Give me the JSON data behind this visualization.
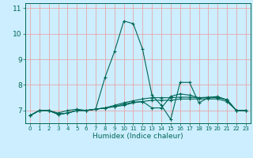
{
  "title": "",
  "xlabel": "Humidex (Indice chaleur)",
  "ylabel": "",
  "bg_color": "#cceeff",
  "grid_color": "#ee9999",
  "line_color": "#006655",
  "xlim": [
    -0.5,
    23.5
  ],
  "ylim": [
    6.5,
    11.2
  ],
  "yticks": [
    7,
    8,
    9,
    10,
    11
  ],
  "xticks": [
    0,
    1,
    2,
    3,
    4,
    5,
    6,
    7,
    8,
    9,
    10,
    11,
    12,
    13,
    14,
    15,
    16,
    17,
    18,
    19,
    20,
    21,
    22,
    23
  ],
  "series1": [
    [
      0,
      6.8
    ],
    [
      1,
      7.0
    ],
    [
      2,
      7.0
    ],
    [
      3,
      6.9
    ],
    [
      4,
      7.0
    ],
    [
      5,
      7.05
    ],
    [
      6,
      7.0
    ],
    [
      7,
      7.05
    ],
    [
      8,
      8.3
    ],
    [
      9,
      9.3
    ],
    [
      10,
      10.5
    ],
    [
      11,
      10.4
    ],
    [
      12,
      9.4
    ],
    [
      13,
      7.6
    ],
    [
      14,
      7.2
    ],
    [
      15,
      6.65
    ],
    [
      16,
      8.1
    ],
    [
      17,
      8.1
    ],
    [
      18,
      7.3
    ],
    [
      19,
      7.5
    ],
    [
      20,
      7.55
    ],
    [
      21,
      7.4
    ],
    [
      22,
      7.0
    ],
    [
      23,
      7.0
    ]
  ],
  "series2": [
    [
      0,
      6.8
    ],
    [
      1,
      7.0
    ],
    [
      2,
      7.0
    ],
    [
      3,
      6.85
    ],
    [
      4,
      6.9
    ],
    [
      5,
      7.0
    ],
    [
      6,
      7.0
    ],
    [
      7,
      7.05
    ],
    [
      8,
      7.1
    ],
    [
      9,
      7.15
    ],
    [
      10,
      7.2
    ],
    [
      11,
      7.3
    ],
    [
      12,
      7.35
    ],
    [
      13,
      7.4
    ],
    [
      14,
      7.4
    ],
    [
      15,
      7.4
    ],
    [
      16,
      7.45
    ],
    [
      17,
      7.45
    ],
    [
      18,
      7.45
    ],
    [
      19,
      7.45
    ],
    [
      20,
      7.45
    ],
    [
      21,
      7.35
    ],
    [
      22,
      7.0
    ],
    [
      23,
      7.0
    ]
  ],
  "series3": [
    [
      0,
      6.8
    ],
    [
      1,
      7.0
    ],
    [
      2,
      7.0
    ],
    [
      3,
      6.85
    ],
    [
      4,
      6.9
    ],
    [
      5,
      7.0
    ],
    [
      6,
      7.0
    ],
    [
      7,
      7.05
    ],
    [
      8,
      7.1
    ],
    [
      9,
      7.2
    ],
    [
      10,
      7.3
    ],
    [
      11,
      7.38
    ],
    [
      12,
      7.45
    ],
    [
      13,
      7.5
    ],
    [
      14,
      7.5
    ],
    [
      15,
      7.5
    ],
    [
      16,
      7.52
    ],
    [
      17,
      7.52
    ],
    [
      18,
      7.5
    ],
    [
      19,
      7.5
    ],
    [
      20,
      7.5
    ],
    [
      21,
      7.42
    ],
    [
      22,
      7.0
    ],
    [
      23,
      7.0
    ]
  ],
  "series4": [
    [
      0,
      6.8
    ],
    [
      1,
      7.0
    ],
    [
      2,
      7.0
    ],
    [
      3,
      6.85
    ],
    [
      4,
      6.9
    ],
    [
      5,
      7.0
    ],
    [
      6,
      7.0
    ],
    [
      7,
      7.05
    ],
    [
      8,
      7.1
    ],
    [
      9,
      7.15
    ],
    [
      10,
      7.25
    ],
    [
      11,
      7.32
    ],
    [
      12,
      7.35
    ],
    [
      13,
      7.1
    ],
    [
      14,
      7.1
    ],
    [
      15,
      7.55
    ],
    [
      16,
      7.65
    ],
    [
      17,
      7.6
    ],
    [
      18,
      7.5
    ],
    [
      19,
      7.52
    ],
    [
      20,
      7.52
    ],
    [
      21,
      7.42
    ],
    [
      22,
      7.0
    ],
    [
      23,
      7.0
    ]
  ]
}
